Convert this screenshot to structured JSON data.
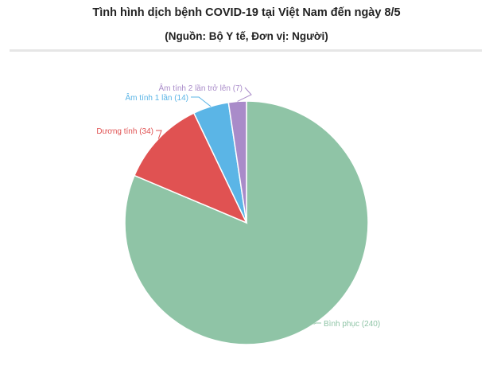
{
  "header": {
    "title": "Tình hình dịch bệnh COVID-19 tại Việt Nam đến ngày 8/5",
    "subtitle": "(Nguồn: Bộ Y tế, Đơn vị: Người)"
  },
  "chart_data": {
    "type": "pie",
    "title": "Tình hình dịch bệnh COVID-19 tại Việt Nam đến ngày 8/5",
    "subtitle": "(Nguồn: Bộ Y tế, Đơn vị: Người)",
    "slices": [
      {
        "label": "Bình phục",
        "value": 240,
        "color": "#8fc4a6",
        "display": "Bình phục (240)"
      },
      {
        "label": "Dương tính",
        "value": 34,
        "color": "#e05252",
        "display": "Dương tính (34)"
      },
      {
        "label": "Âm tính 1 lần",
        "value": 14,
        "color": "#5bb5e6",
        "display": "Âm tính 1 lần (14)"
      },
      {
        "label": "Âm tính 2 lần trở lên",
        "value": 7,
        "color": "#a98bc9",
        "display": "Âm tính 2 lần trở lên (7)"
      }
    ],
    "legend": "none",
    "data_labels": "outside-with-connectors"
  }
}
